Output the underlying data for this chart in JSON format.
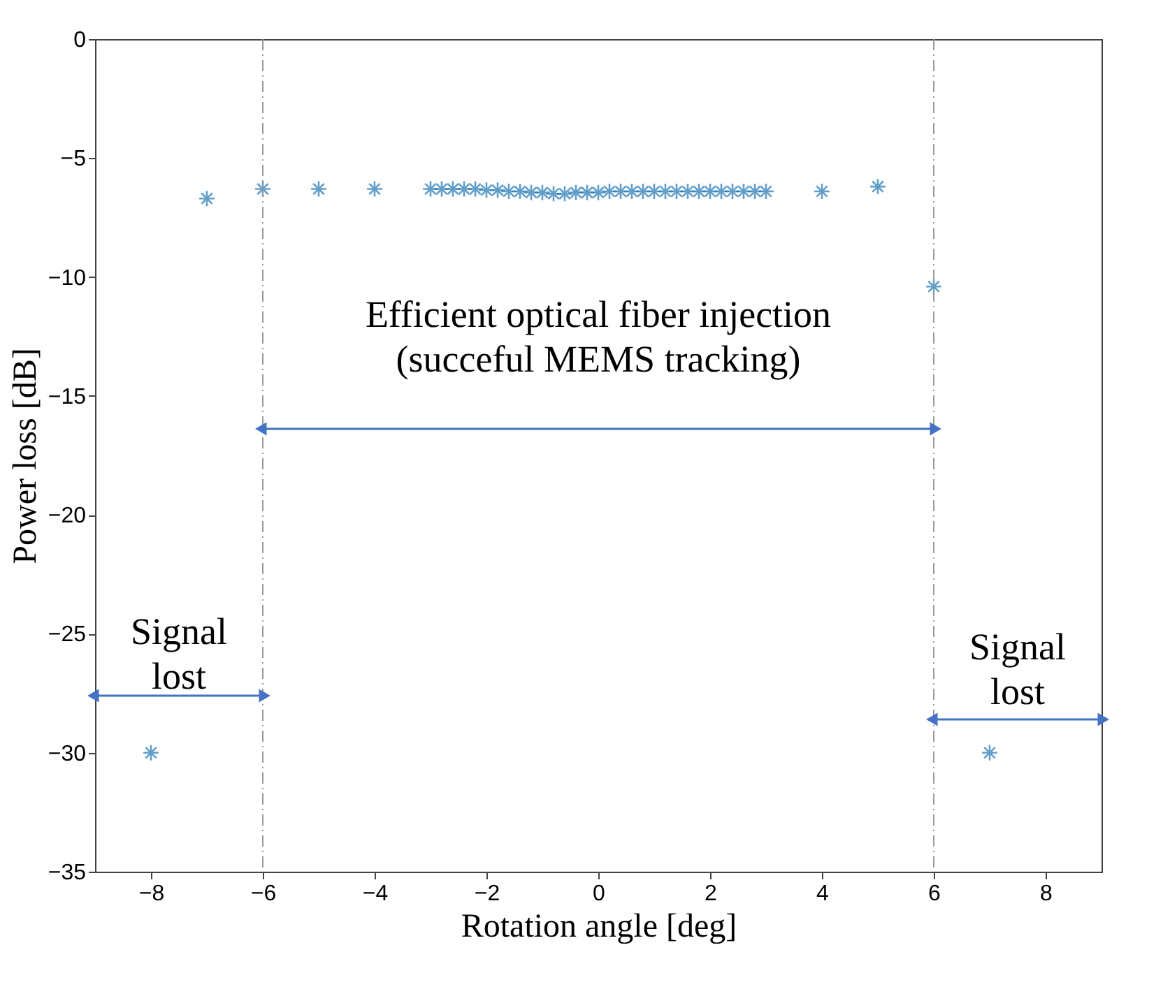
{
  "chart_data": {
    "type": "scatter",
    "xlabel": "Rotation angle [deg]",
    "ylabel": "Power loss [dB]",
    "x": [
      -8,
      -7,
      -6,
      -5,
      -4,
      -3,
      -2.8,
      -2.6,
      -2.4,
      -2.2,
      -2,
      -1.8,
      -1.6,
      -1.4,
      -1.2,
      -1,
      -0.8,
      -0.6,
      -0.4,
      -0.2,
      0,
      0.2,
      0.4,
      0.6,
      0.8,
      1,
      1.2,
      1.4,
      1.6,
      1.8,
      2,
      2.2,
      2.4,
      2.6,
      2.8,
      3,
      4,
      5,
      6,
      7
    ],
    "series": [
      {
        "color": "#1f77b4",
        "values": [
          -30,
          -6.7,
          -6.3,
          -6.3,
          -6.3,
          -6.3,
          -6.3,
          -6.3,
          -6.3,
          -6.3,
          -6.35,
          -6.35,
          -6.4,
          -6.4,
          -6.45,
          -6.45,
          -6.5,
          -6.5,
          -6.45,
          -6.45,
          -6.45,
          -6.4,
          -6.4,
          -6.4,
          -6.4,
          -6.4,
          -6.4,
          -6.4,
          -6.4,
          -6.4,
          -6.4,
          -6.4,
          -6.4,
          -6.4,
          -6.4,
          -6.4,
          -6.4,
          -6.2,
          -10.4,
          -30
        ]
      }
    ],
    "xlim": [
      -9,
      9
    ],
    "ylim": [
      -35,
      0
    ],
    "xticks": [
      -8,
      -6,
      -4,
      -2,
      0,
      2,
      4,
      6,
      8
    ],
    "yticks": [
      -35,
      -30,
      -25,
      -20,
      -15,
      -10,
      -5,
      0
    ],
    "marker": "cross",
    "grid": false,
    "legend": false,
    "ref_lines": [
      {
        "axis": "x",
        "value": -6,
        "color": "#999999",
        "line_style": "dashdot"
      },
      {
        "axis": "x",
        "value": 6,
        "color": "#999999",
        "line_style": "dashdot"
      }
    ],
    "annotations": [
      "Efficient optical fiber injection\n(succeful MEMS tracking)",
      "Signal\nlost",
      "Signal\nlost"
    ]
  }
}
